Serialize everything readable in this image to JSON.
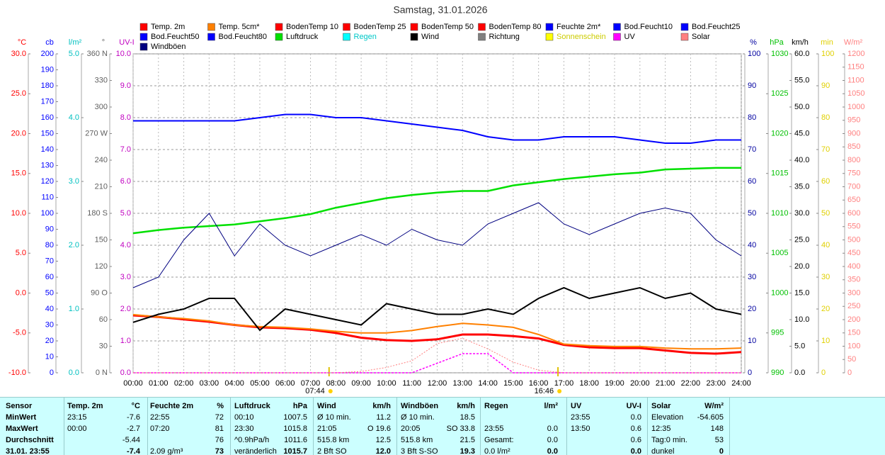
{
  "chart_data": {
    "type": "line",
    "title": "Samstag, 31.01.2026",
    "x": [
      0,
      1,
      2,
      3,
      4,
      5,
      6,
      7,
      8,
      9,
      10,
      11,
      12,
      13,
      14,
      15,
      16,
      17,
      18,
      19,
      20,
      21,
      22,
      23,
      24
    ],
    "xlim": [
      0,
      24
    ],
    "xticks": [
      {
        "value": 0,
        "label": "00:00"
      },
      {
        "value": 1,
        "label": "01:00"
      },
      {
        "value": 2,
        "label": "02:00"
      },
      {
        "value": 3,
        "label": "03:00"
      },
      {
        "value": 4,
        "label": "04:00"
      },
      {
        "value": 5,
        "label": "05:00"
      },
      {
        "value": 6,
        "label": "06:00"
      },
      {
        "value": 7,
        "label": "07:00"
      },
      {
        "value": 8,
        "label": "08:00"
      },
      {
        "value": 9,
        "label": "09:00"
      },
      {
        "value": 10,
        "label": "10:00"
      },
      {
        "value": 11,
        "label": "11:00"
      },
      {
        "value": 12,
        "label": "12:00"
      },
      {
        "value": 13,
        "label": "13:00"
      },
      {
        "value": 14,
        "label": "14:00"
      },
      {
        "value": 15,
        "label": "15:00"
      },
      {
        "value": 16,
        "label": "16:00"
      },
      {
        "value": 17,
        "label": "17:00"
      },
      {
        "value": 18,
        "label": "18:00"
      },
      {
        "value": 19,
        "label": "19:00"
      },
      {
        "value": 20,
        "label": "20:00"
      },
      {
        "value": 21,
        "label": "21:00"
      },
      {
        "value": 22,
        "label": "22:00"
      },
      {
        "value": 23,
        "label": "23:00"
      },
      {
        "value": 24,
        "label": "24:00"
      }
    ],
    "grid": true,
    "annotations": [
      {
        "value": 7.733,
        "label": "07:44"
      },
      {
        "value": 16.767,
        "label": "16:46"
      }
    ],
    "axes": [
      {
        "unit": "°C",
        "color": "#ff0000",
        "side": "left",
        "lim": [
          -10,
          30
        ],
        "ticks": [
          {
            "value": -10,
            "label": "-10.0"
          },
          {
            "value": -5,
            "label": "-5.0"
          },
          {
            "value": 0,
            "label": "0.0"
          },
          {
            "value": 5,
            "label": "5.0"
          },
          {
            "value": 10,
            "label": "10.0"
          },
          {
            "value": 15,
            "label": "15.0"
          },
          {
            "value": 20,
            "label": "20.0"
          },
          {
            "value": 25,
            "label": "25.0"
          },
          {
            "value": 30,
            "label": "30.0"
          }
        ]
      },
      {
        "unit": "cb",
        "color": "#0000ff",
        "side": "left",
        "lim": [
          0,
          200
        ],
        "ticks": [
          0,
          10,
          20,
          30,
          40,
          50,
          60,
          70,
          80,
          90,
          100,
          110,
          120,
          130,
          140,
          150,
          160,
          170,
          180,
          190,
          200
        ]
      },
      {
        "unit": "l/m²",
        "color": "#00c0c0",
        "side": "left",
        "lim": [
          0,
          5
        ],
        "ticks": [
          {
            "value": 0,
            "label": "0.0"
          },
          {
            "value": 1,
            "label": "1.0"
          },
          {
            "value": 2,
            "label": "2.0"
          },
          {
            "value": 3,
            "label": "3.0"
          },
          {
            "value": 4,
            "label": "4.0"
          },
          {
            "value": 5,
            "label": "5.0"
          }
        ]
      },
      {
        "unit": "°",
        "color": "#606060",
        "side": "left",
        "lim": [
          0,
          360
        ],
        "ticks": [
          {
            "value": 0,
            "label": "0 N"
          },
          30,
          60,
          {
            "value": 90,
            "label": "90 O"
          },
          120,
          150,
          {
            "value": 180,
            "label": "180 S"
          },
          210,
          240,
          {
            "value": 270,
            "label": "270 W"
          },
          300,
          330,
          {
            "value": 360,
            "label": "360 N"
          }
        ]
      },
      {
        "unit": "UV-I",
        "color": "#c000c0",
        "side": "left",
        "lim": [
          0,
          10
        ],
        "ticks": [
          {
            "value": 0,
            "label": "0.0"
          },
          {
            "value": 1,
            "label": "1.0"
          },
          {
            "value": 2,
            "label": "2.0"
          },
          {
            "value": 3,
            "label": "3.0"
          },
          {
            "value": 4,
            "label": "4.0"
          },
          {
            "value": 5,
            "label": "5.0"
          },
          {
            "value": 6,
            "label": "6.0"
          },
          {
            "value": 7,
            "label": "7.0"
          },
          {
            "value": 8,
            "label": "8.0"
          },
          {
            "value": 9,
            "label": "9.0"
          },
          {
            "value": 10,
            "label": "10.0"
          }
        ]
      },
      {
        "unit": "%",
        "color": "#0000a0",
        "side": "right",
        "lim": [
          0,
          100
        ],
        "ticks": [
          0,
          10,
          20,
          30,
          40,
          50,
          60,
          70,
          80,
          90,
          100
        ]
      },
      {
        "unit": "hPa",
        "color": "#00c000",
        "side": "right",
        "lim": [
          990,
          1030
        ],
        "ticks": [
          990,
          995,
          1000,
          1005,
          1010,
          1015,
          1020,
          1025,
          1030
        ]
      },
      {
        "unit": "km/h",
        "color": "#000000",
        "side": "right",
        "lim": [
          0,
          60
        ],
        "ticks": [
          {
            "value": 0,
            "label": "0.0"
          },
          {
            "value": 5,
            "label": "5.0"
          },
          {
            "value": 10,
            "label": "10.0"
          },
          {
            "value": 15,
            "label": "15.0"
          },
          {
            "value": 20,
            "label": "20.0"
          },
          {
            "value": 25,
            "label": "25.0"
          },
          {
            "value": 30,
            "label": "30.0"
          },
          {
            "value": 35,
            "label": "35.0"
          },
          {
            "value": 40,
            "label": "40.0"
          },
          {
            "value": 45,
            "label": "45.0"
          },
          {
            "value": 50,
            "label": "50.0"
          },
          {
            "value": 55,
            "label": "55.0"
          },
          {
            "value": 60,
            "label": "60.0"
          }
        ]
      },
      {
        "unit": "min",
        "color": "#e0d000",
        "side": "right",
        "lim": [
          0,
          100
        ],
        "ticks": [
          0,
          10,
          20,
          30,
          40,
          50,
          60,
          70,
          80,
          90,
          100
        ]
      },
      {
        "unit": "W/m²",
        "color": "#ff8080",
        "side": "right",
        "lim": [
          0,
          1200
        ],
        "ticks": [
          0,
          50,
          100,
          150,
          200,
          250,
          300,
          350,
          400,
          450,
          500,
          550,
          600,
          650,
          700,
          750,
          800,
          850,
          900,
          950,
          1000,
          1050,
          1100,
          1150,
          1200
        ]
      }
    ],
    "series": [
      {
        "name": "Temp. 2m",
        "color": "#ff0000",
        "axis": 0,
        "values": [
          -2.8,
          -3.0,
          -3.3,
          -3.6,
          -4.0,
          -4.3,
          -4.4,
          -4.6,
          -5.0,
          -5.6,
          -5.9,
          -6.0,
          -5.8,
          -5.2,
          -5.2,
          -5.4,
          -5.7,
          -6.5,
          -6.8,
          -6.9,
          -6.9,
          -7.2,
          -7.5,
          -7.6,
          -7.4
        ]
      },
      {
        "name": "Temp. 5cm*",
        "color": "#ff8000",
        "axis": 0,
        "values": [
          -2.7,
          -3.0,
          -3.2,
          -3.5,
          -4.0,
          -4.2,
          -4.3,
          -4.5,
          -4.8,
          -5.0,
          -5.0,
          -4.7,
          -4.2,
          -3.8,
          -4.0,
          -4.3,
          -5.2,
          -6.4,
          -6.6,
          -6.7,
          -6.7,
          -6.9,
          -7.0,
          -7.0,
          -6.9
        ]
      },
      {
        "name": "BodenTemp 10",
        "color": "#ff0000"
      },
      {
        "name": "BodenTemp 25",
        "color": "#ff0000"
      },
      {
        "name": "BodenTemp 50",
        "color": "#ff0000"
      },
      {
        "name": "BodenTemp 80",
        "color": "#ff0000"
      },
      {
        "name": "Feuchte 2m*",
        "color": "#0000ff",
        "axis": 5,
        "values": [
          79,
          79,
          79,
          79,
          79,
          80,
          81,
          81,
          80,
          80,
          79,
          78,
          77,
          76,
          74,
          73,
          73,
          74,
          74,
          74,
          73,
          72,
          72,
          73,
          73
        ]
      },
      {
        "name": "Bod.Feucht10",
        "color": "#0000ff"
      },
      {
        "name": "Bod.Feucht25",
        "color": "#0000ff"
      },
      {
        "name": "Bod.Feucht50",
        "color": "#0000ff"
      },
      {
        "name": "Bod.Feucht80",
        "color": "#0000ff"
      },
      {
        "name": "Luftdruck",
        "color": "#00e000",
        "axis": 6,
        "values": [
          1007.5,
          1007.9,
          1008.2,
          1008.4,
          1008.6,
          1009.0,
          1009.4,
          1009.9,
          1010.7,
          1011.3,
          1011.9,
          1012.3,
          1012.6,
          1012.8,
          1012.8,
          1013.5,
          1013.9,
          1014.3,
          1014.6,
          1014.9,
          1015.1,
          1015.5,
          1015.6,
          1015.7,
          1015.7
        ]
      },
      {
        "name": "Regen",
        "color": "#00ffff"
      },
      {
        "name": "Wind",
        "color": "#000000",
        "axis": 7,
        "values": [
          9.5,
          11,
          12,
          14,
          14,
          8,
          12,
          11,
          10,
          9,
          13,
          12,
          11,
          11,
          12,
          11,
          14,
          16,
          14,
          15,
          16,
          14,
          15,
          12,
          11
        ]
      },
      {
        "name": "Richtung",
        "color": "#808080"
      },
      {
        "name": "Sonnenschein",
        "color": "#ffff00"
      },
      {
        "name": "UV",
        "color": "#ff00ff",
        "axis": 4,
        "values": [
          0,
          0,
          0,
          0,
          0,
          0,
          0,
          0,
          0,
          0,
          0,
          0,
          0.3,
          0.6,
          0.6,
          0,
          0,
          0,
          0,
          0,
          0,
          0,
          0,
          0,
          0
        ]
      },
      {
        "name": "Solar",
        "color": "#ff8080",
        "axis": 9,
        "values": [
          0,
          0,
          0,
          0,
          0,
          0,
          0,
          0,
          0,
          5,
          20,
          45,
          110,
          130,
          90,
          40,
          10,
          0,
          0,
          0,
          0,
          0,
          0,
          0,
          0
        ]
      },
      {
        "name": "Windböen",
        "color": "#000080",
        "axis": 7,
        "values": [
          16,
          18,
          25,
          30,
          22,
          28,
          24,
          22,
          24,
          26,
          24,
          27,
          25,
          24,
          28,
          30,
          32,
          28,
          26,
          28,
          30,
          31,
          30,
          25,
          22
        ]
      }
    ]
  },
  "table": {
    "rows": [
      [
        "Sensor",
        "Temp. 2m",
        "°C",
        "Feuchte 2m",
        "%",
        "Luftdruck",
        "hPa",
        "Wind",
        "km/h",
        "Windböen",
        "km/h",
        "Regen",
        "l/m²",
        "UV",
        "UV-I",
        "Solar",
        "W/m²"
      ],
      [
        "MinWert",
        "23:15",
        "-7.6",
        "22:55",
        "72",
        "00:10",
        "1007.5",
        "Ø 10 min.",
        "11.2",
        "Ø 10 min.",
        "18.5",
        null,
        null,
        "23:55",
        "0.0",
        "Elevation",
        "-54.605"
      ],
      [
        "MaxWert",
        "00:00",
        "-2.7",
        "07:20",
        "81",
        "23:30",
        "1015.8",
        "21:05",
        "O 19.6",
        "20:05",
        "SO 33.8",
        "23:55",
        "0.0",
        "13:50",
        "0.6",
        "12:35",
        "148"
      ],
      [
        "Durchschnitt",
        null,
        "-5.44",
        null,
        "76",
        "^0.9hPa/h",
        "1011.6",
        "515.8 km",
        "12.5",
        "515.8 km",
        "21.5",
        "Gesamt:",
        "0.0",
        null,
        "0.6",
        "Tag:0 min.",
        "53"
      ],
      [
        "31.01. 23:55",
        null,
        "-7.4",
        "2.09 g/m³",
        "73",
        "veränderlich",
        "1015.7",
        "2 Bft SO",
        "12.0",
        "3 Bft S-SO",
        "19.3",
        "0.0 l/m²",
        "0.0",
        null,
        "0.0",
        "dunkel",
        "0"
      ]
    ]
  }
}
